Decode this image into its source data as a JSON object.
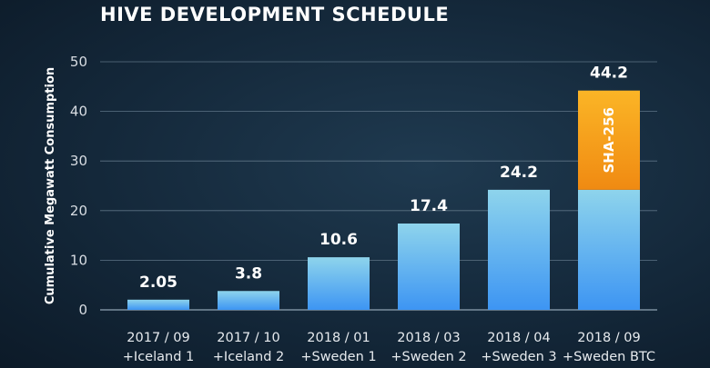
{
  "chart_data": {
    "type": "bar",
    "stacked": true,
    "title": "HIVE DEVELOPMENT SCHEDULE",
    "ylabel": "Cumulative Megawatt Consumption",
    "xlabel": "",
    "ylim": [
      0,
      50
    ],
    "yticks": [
      0,
      10,
      20,
      30,
      40,
      50
    ],
    "grid": true,
    "categories": [
      [
        "2017 / 09",
        "+Iceland 1"
      ],
      [
        "2017 / 10",
        "+Iceland 2"
      ],
      [
        "2018 / 01",
        "+Sweden 1"
      ],
      [
        "2018 / 03",
        "+Sweden 2"
      ],
      [
        "2018 / 04",
        "+Sweden 3"
      ],
      [
        "2018 / 09",
        "+Sweden BTC"
      ]
    ],
    "totals": [
      "2.05",
      "3.8",
      "10.6",
      "17.4",
      "24.2",
      "44.2"
    ],
    "series": [
      {
        "values": [
          2.05,
          3.8,
          10.6,
          17.4,
          24.2,
          24.2
        ],
        "color": "#6cc6ee"
      },
      {
        "name": "SHA-256",
        "values": [
          0,
          0,
          0,
          0,
          0,
          20.0
        ],
        "color": "#f59a1a"
      }
    ]
  }
}
